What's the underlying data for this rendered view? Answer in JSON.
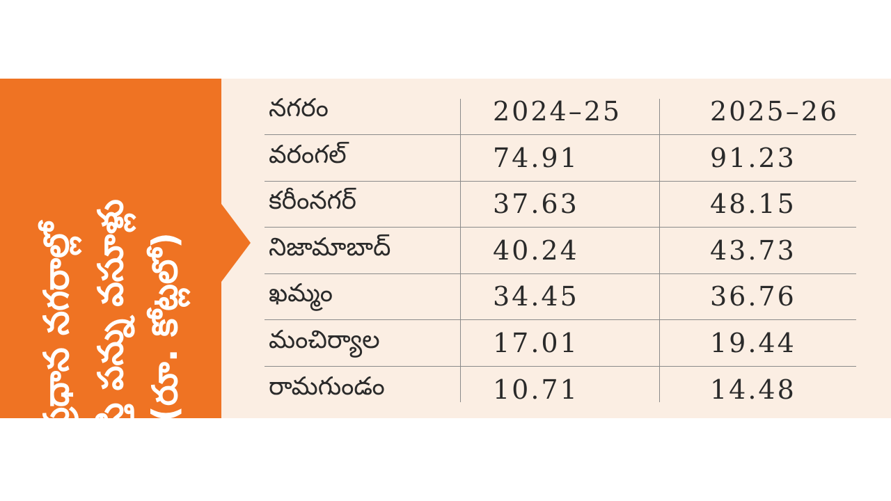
{
  "title": {
    "lines": [
      "ప్రధాన నగరాల్లో",
      "ఆస్తి పన్ను వసూళ్లు",
      "(రూ. కోట్లలో)"
    ]
  },
  "table": {
    "headers": [
      "నగరం",
      "2024–25",
      "2025–26"
    ],
    "rows": [
      {
        "city": "వరంగల్",
        "y2024_25": "74.91",
        "y2025_26": "91.23"
      },
      {
        "city": "కరీంనగర్",
        "y2024_25": "37.63",
        "y2025_26": "48.15"
      },
      {
        "city": "నిజామాబాద్",
        "y2024_25": "40.24",
        "y2025_26": "43.73"
      },
      {
        "city": "ఖమ్మం",
        "y2024_25": "34.45",
        "y2025_26": "36.76"
      },
      {
        "city": "మంచిర్యాల",
        "y2024_25": "17.01",
        "y2025_26": "19.44"
      },
      {
        "city": "రామగుండం",
        "y2024_25": "10.71",
        "y2025_26": "14.48"
      }
    ]
  },
  "colors": {
    "accent": "#ef7323",
    "panel_background": "#fbeee3",
    "text": "#2a2a2a",
    "rule": "#8a8a8a"
  }
}
